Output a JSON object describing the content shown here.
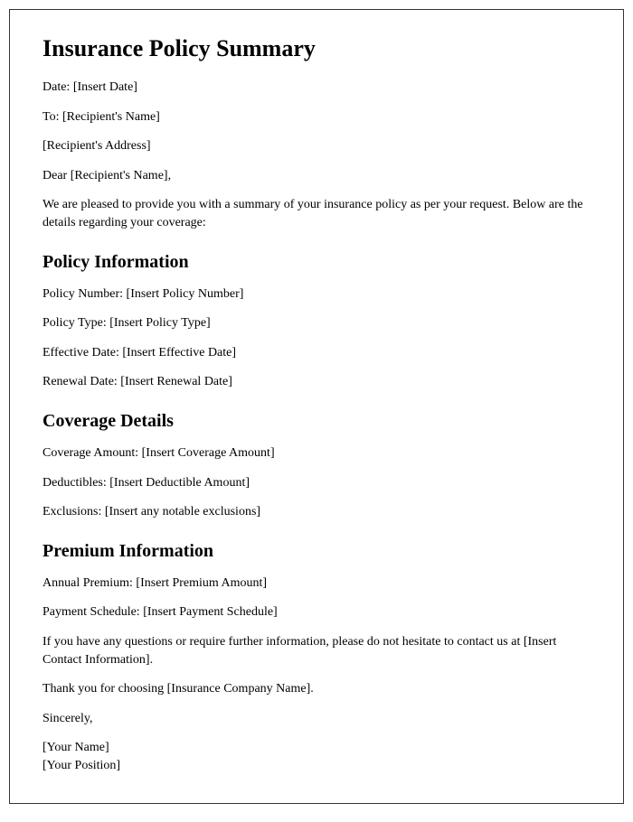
{
  "title": "Insurance Policy Summary",
  "header": {
    "date": "Date: [Insert Date]",
    "to": "To: [Recipient's Name]",
    "address": "[Recipient's Address]",
    "salutation": "Dear [Recipient's Name],"
  },
  "intro": "We are pleased to provide you with a summary of your insurance policy as per your request. Below are the details regarding your coverage:",
  "sections": {
    "policy_info": {
      "heading": "Policy Information",
      "items": {
        "number": "Policy Number: [Insert Policy Number]",
        "type": "Policy Type: [Insert Policy Type]",
        "effective": "Effective Date: [Insert Effective Date]",
        "renewal": "Renewal Date: [Insert Renewal Date]"
      }
    },
    "coverage": {
      "heading": "Coverage Details",
      "items": {
        "amount": "Coverage Amount: [Insert Coverage Amount]",
        "deductibles": "Deductibles: [Insert Deductible Amount]",
        "exclusions": "Exclusions: [Insert any notable exclusions]"
      }
    },
    "premium": {
      "heading": "Premium Information",
      "items": {
        "annual": "Annual Premium: [Insert Premium Amount]",
        "schedule": "Payment Schedule: [Insert Payment Schedule]"
      }
    }
  },
  "closing": {
    "contact": "If you have any questions or require further information, please do not hesitate to contact us at [Insert Contact Information].",
    "thanks": "Thank you for choosing [Insurance Company Name].",
    "signoff": "Sincerely,",
    "name": "[Your Name]",
    "position": "[Your Position]"
  }
}
